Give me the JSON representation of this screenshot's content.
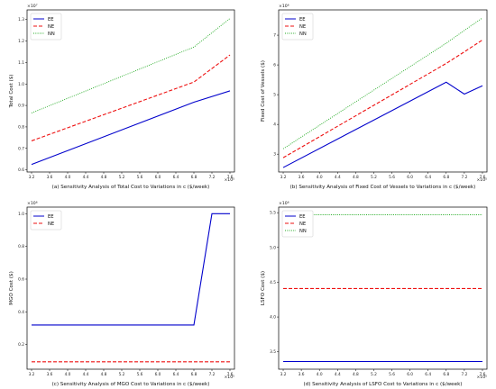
{
  "chart_data": [
    {
      "type": "line",
      "xlabel": "(a) Sensitivity Analysis of Total Cost to Variations in c ($/week)",
      "ylabel": "Total Cost ($)",
      "x_multiplier": "×10⁵",
      "y_multiplier": "×10⁷",
      "xticks": [
        "3.2",
        "3.6",
        "4.0",
        "4.4",
        "4.8",
        "5.2",
        "5.6",
        "6.0",
        "6.4",
        "6.8",
        "7.2",
        "7.6"
      ],
      "yticks": [
        "0.6",
        "0.7",
        "0.8",
        "0.9",
        "1.0",
        "1.1",
        "1.2",
        "1.3"
      ],
      "xlim": [
        3.1,
        7.7
      ],
      "ylim": [
        0.59,
        1.345
      ],
      "legend_position": "top-left",
      "x": [
        3.2,
        6.8,
        7.6
      ],
      "series": [
        {
          "name": "EE",
          "color": "#0000cc",
          "style": "solid",
          "values": [
            0.625,
            0.915,
            0.968
          ]
        },
        {
          "name": "NE",
          "color": "#ee1111",
          "style": "dashed",
          "values": [
            0.735,
            1.009,
            1.135
          ]
        },
        {
          "name": "NN",
          "color": "#22aa22",
          "style": "dotted",
          "values": [
            0.865,
            1.172,
            1.305
          ]
        }
      ]
    },
    {
      "type": "line",
      "xlabel": "(b) Sensitivity Analysis of Fixed Cost of Vessels to Variations in c ($/week)",
      "ylabel": "Fixed Cost of Vessels ($)",
      "x_multiplier": "×10⁵",
      "y_multiplier": "×10⁶",
      "xticks": [
        "3.2",
        "3.6",
        "4.0",
        "4.4",
        "4.8",
        "5.2",
        "5.6",
        "6.0",
        "6.4",
        "6.8",
        "7.2",
        "7.6"
      ],
      "yticks": [
        "3",
        "4",
        "5",
        "6",
        "7"
      ],
      "xlim": [
        3.1,
        7.7
      ],
      "ylim": [
        2.4,
        7.85
      ],
      "legend_position": "top-left",
      "x": [
        3.2,
        6.8,
        7.2,
        7.6
      ],
      "series": [
        {
          "name": "EE",
          "color": "#0000cc",
          "style": "solid",
          "values": [
            2.55,
            5.42,
            5.02,
            5.3
          ]
        },
        {
          "name": "NE",
          "color": "#ee1111",
          "style": "dashed",
          "values": [
            2.88,
            6.05,
            6.44,
            6.84
          ]
        },
        {
          "name": "NN",
          "color": "#22aa22",
          "style": "dotted",
          "values": [
            3.18,
            6.73,
            7.16,
            7.58
          ]
        }
      ]
    },
    {
      "type": "line",
      "xlabel": "(c) Sensitivity Analysis of MGO Cost to Variations in c ($/week)",
      "ylabel": "MGO Cost ($)",
      "x_multiplier": "×10⁵",
      "y_multiplier": "×10⁶",
      "xticks": [
        "3.2",
        "3.6",
        "4.0",
        "4.4",
        "4.8",
        "5.2",
        "5.6",
        "6.0",
        "6.4",
        "6.8",
        "7.2",
        "7.6"
      ],
      "yticks": [
        "0.2",
        "0.4",
        "0.6",
        "0.8",
        "1.0"
      ],
      "xlim": [
        3.1,
        7.7
      ],
      "ylim": [
        0.05,
        1.04
      ],
      "legend_position": "top-left",
      "x": [
        3.2,
        6.8,
        7.2,
        7.6
      ],
      "series": [
        {
          "name": "EE",
          "color": "#0000cc",
          "style": "solid",
          "values": [
            0.32,
            0.32,
            1.0,
            1.0
          ]
        },
        {
          "name": "NE",
          "color": "#ee1111",
          "style": "dashed",
          "values": [
            0.095,
            0.095,
            0.095,
            0.095
          ]
        }
      ]
    },
    {
      "type": "line",
      "xlabel": "(d) Sensitivity Analysis of LSFO Cost to Variations in c ($/week)",
      "ylabel": "LSFO Cost ($)",
      "x_multiplier": "×10⁵",
      "y_multiplier": "×10⁶",
      "xticks": [
        "3.2",
        "3.6",
        "4.0",
        "4.4",
        "4.8",
        "5.2",
        "5.6",
        "6.0",
        "6.4",
        "6.8",
        "7.2",
        "7.6"
      ],
      "yticks": [
        "3.5",
        "4.0",
        "4.5",
        "5.0",
        "5.5"
      ],
      "xlim": [
        3.1,
        7.7
      ],
      "ylim": [
        3.25,
        5.58
      ],
      "legend_position": "top-left",
      "x": [
        3.2,
        7.6
      ],
      "series": [
        {
          "name": "EE",
          "color": "#0000cc",
          "style": "solid",
          "values": [
            3.36,
            3.36
          ]
        },
        {
          "name": "NE",
          "color": "#ee1111",
          "style": "dashed",
          "values": [
            4.41,
            4.41
          ]
        },
        {
          "name": "NN",
          "color": "#22aa22",
          "style": "dotted",
          "values": [
            5.47,
            5.47
          ]
        }
      ]
    }
  ]
}
